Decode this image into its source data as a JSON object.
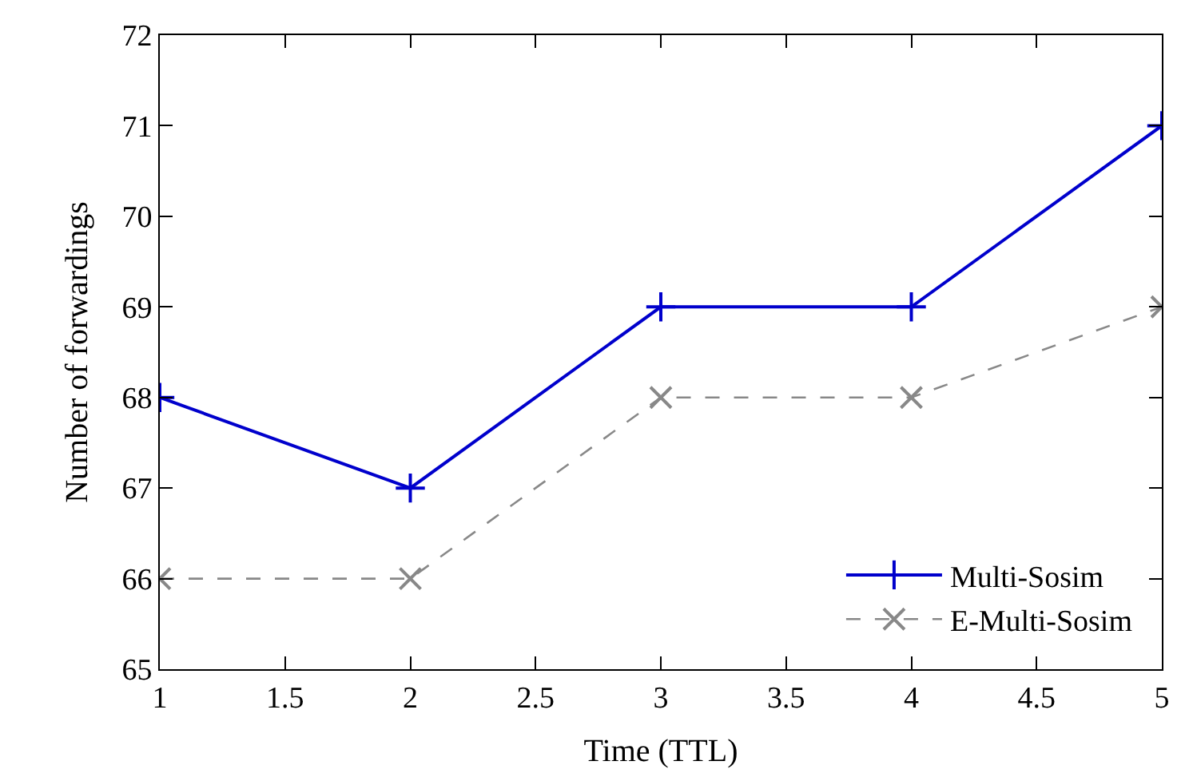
{
  "chart_data": {
    "type": "line",
    "xlabel": "Time (TTL)",
    "ylabel": "Number of forwardings",
    "x": [
      1,
      2,
      3,
      4,
      5
    ],
    "series": [
      {
        "name": "Multi-Sosim",
        "color": "#0000cc",
        "values": [
          68,
          67,
          69,
          69,
          71
        ],
        "marker": "cross",
        "line_style": "solid"
      },
      {
        "name": "E-Multi-Sosim",
        "color": "#888888",
        "values": [
          66,
          66,
          68,
          68,
          69
        ],
        "marker": "x",
        "line_style": "dashed"
      }
    ],
    "xlim": [
      1,
      5
    ],
    "xticks": [
      1,
      1.5,
      2,
      2.5,
      3,
      3.5,
      4,
      4.5,
      5
    ],
    "ylim": [
      65,
      72
    ],
    "yticks": [
      65,
      66,
      67,
      68,
      69,
      70,
      71,
      72
    ],
    "legend": "bottom right"
  }
}
